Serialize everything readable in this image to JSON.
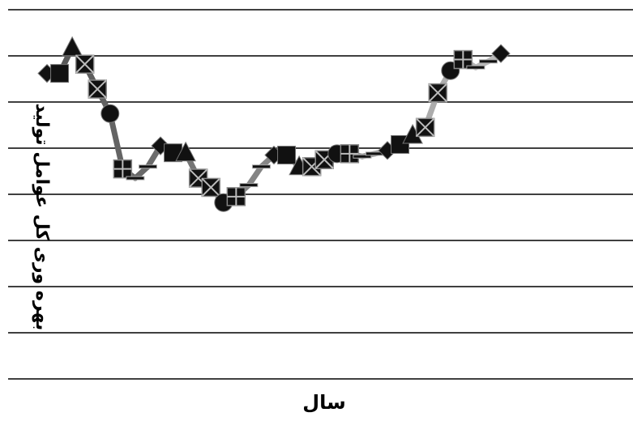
{
  "chart_data": {
    "type": "line",
    "title": "",
    "xlabel": "سال",
    "ylabel": "بهره وری کل عوامل تولید",
    "grid": true,
    "legend": "none",
    "ylim": [
      0,
      8
    ],
    "gridlines": [
      0,
      1,
      2,
      3,
      4,
      5,
      6,
      7,
      8
    ],
    "colors": {
      "gridline": "#000000",
      "marker": "#111111",
      "line_dark": "#555555",
      "line_light": "#bbbbbb"
    },
    "series": [
      {
        "values": [
          {
            "y": 6.62,
            "marker": "diamond"
          },
          {
            "y": 6.62,
            "marker": "square"
          },
          {
            "y": 7.18,
            "marker": "triangle"
          },
          {
            "y": 6.82,
            "marker": "square-x"
          },
          {
            "y": 6.28,
            "marker": "square-x"
          },
          {
            "y": 5.75,
            "marker": "circle"
          },
          {
            "y": 4.55,
            "marker": "square-plus"
          },
          {
            "y": 4.35,
            "marker": "dash"
          },
          {
            "y": 4.6,
            "marker": "dash"
          },
          {
            "y": 5.05,
            "marker": "diamond"
          },
          {
            "y": 4.9,
            "marker": "square"
          },
          {
            "y": 4.9,
            "marker": "triangle"
          },
          {
            "y": 4.35,
            "marker": "square-x"
          },
          {
            "y": 4.15,
            "marker": "square-x"
          },
          {
            "y": 3.82,
            "marker": "circle"
          },
          {
            "y": 3.95,
            "marker": "square-plus"
          },
          {
            "y": 4.2,
            "marker": "dash"
          },
          {
            "y": 4.6,
            "marker": "dash"
          },
          {
            "y": 4.85,
            "marker": "diamond"
          },
          {
            "y": 4.85,
            "marker": "square"
          },
          {
            "y": 4.6,
            "marker": "triangle"
          },
          {
            "y": 4.6,
            "marker": "square-x"
          },
          {
            "y": 4.75,
            "marker": "square-x"
          },
          {
            "y": 4.88,
            "marker": "circle"
          },
          {
            "y": 4.88,
            "marker": "square-plus"
          },
          {
            "y": 4.82,
            "marker": "dash"
          },
          {
            "y": 4.88,
            "marker": "dash"
          },
          {
            "y": 4.95,
            "marker": "diamond"
          },
          {
            "y": 5.08,
            "marker": "square"
          },
          {
            "y": 5.28,
            "marker": "triangle"
          },
          {
            "y": 5.45,
            "marker": "square-x"
          },
          {
            "y": 6.2,
            "marker": "square-x"
          },
          {
            "y": 6.68,
            "marker": "circle"
          },
          {
            "y": 6.92,
            "marker": "square-plus"
          },
          {
            "y": 6.75,
            "marker": "dash"
          },
          {
            "y": 6.88,
            "marker": "dash"
          },
          {
            "y": 7.05,
            "marker": "diamond"
          }
        ]
      }
    ]
  }
}
